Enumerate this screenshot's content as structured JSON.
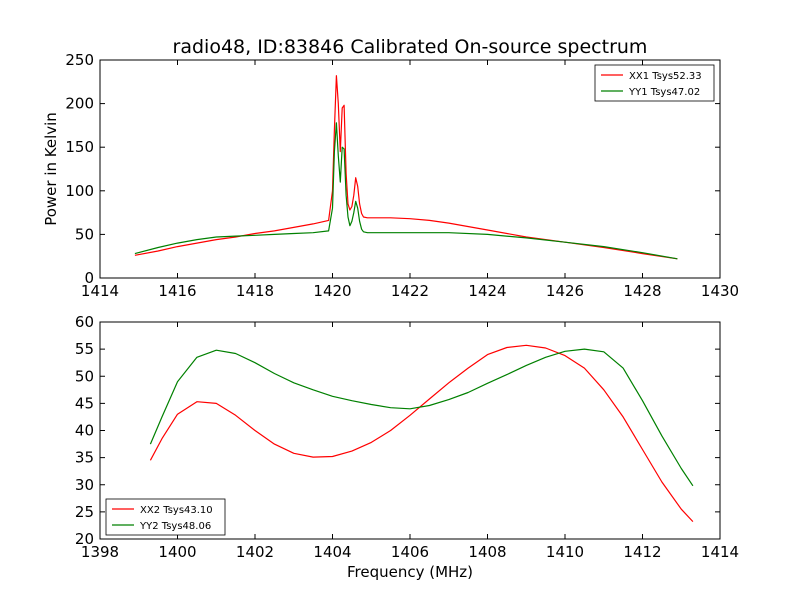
{
  "figure": {
    "title": "radio48, ID:83846 Calibrated On-source spectrum",
    "xlabel": "Frequency (MHz)"
  },
  "colors": {
    "red": "#ff0000",
    "green": "#008000",
    "axis": "#000000",
    "bg": "#ffffff"
  },
  "chart_data": [
    {
      "type": "line",
      "title": "radio48, ID:83846 Calibrated On-source spectrum",
      "xlabel": "",
      "ylabel": "Power in Kelvin",
      "xlim": [
        1414,
        1430
      ],
      "ylim": [
        0,
        250
      ],
      "xticks": [
        1414,
        1416,
        1418,
        1420,
        1422,
        1424,
        1426,
        1428,
        1430
      ],
      "yticks": [
        0,
        50,
        100,
        150,
        200,
        250
      ],
      "legend": "top-right",
      "series": [
        {
          "name": "XX1 Tsys52.33",
          "color": "#ff0000",
          "x": [
            1414.9,
            1415.5,
            1416,
            1416.5,
            1417,
            1417.5,
            1418,
            1418.5,
            1419,
            1419.5,
            1419.9,
            1420.0,
            1420.05,
            1420.1,
            1420.15,
            1420.2,
            1420.25,
            1420.3,
            1420.35,
            1420.4,
            1420.45,
            1420.5,
            1420.55,
            1420.6,
            1420.65,
            1420.7,
            1420.75,
            1420.8,
            1420.9,
            1421,
            1421.5,
            1422,
            1422.5,
            1423,
            1424,
            1425,
            1426,
            1427,
            1428,
            1428.9
          ],
          "y": [
            26,
            31,
            36,
            40,
            44,
            47,
            51,
            54,
            58,
            62,
            66,
            100,
            170,
            232,
            200,
            145,
            195,
            198,
            120,
            85,
            78,
            82,
            95,
            115,
            105,
            85,
            74,
            70,
            69,
            69,
            69,
            68,
            66,
            63,
            55,
            47,
            41,
            35,
            28,
            22
          ]
        },
        {
          "name": "YY1 Tsys47.02",
          "color": "#008000",
          "x": [
            1414.9,
            1415.5,
            1416,
            1416.5,
            1417,
            1417.5,
            1418,
            1418.5,
            1419,
            1419.5,
            1419.9,
            1420.0,
            1420.05,
            1420.1,
            1420.15,
            1420.2,
            1420.25,
            1420.3,
            1420.35,
            1420.4,
            1420.45,
            1420.5,
            1420.55,
            1420.6,
            1420.65,
            1420.7,
            1420.75,
            1420.8,
            1420.9,
            1421,
            1422,
            1423,
            1424,
            1425,
            1426,
            1427,
            1428,
            1428.9
          ],
          "y": [
            28,
            35,
            40,
            44,
            47,
            48,
            49,
            50,
            51,
            52,
            54,
            80,
            145,
            178,
            140,
            110,
            150,
            148,
            95,
            70,
            60,
            65,
            75,
            88,
            80,
            65,
            56,
            53,
            52,
            52,
            52,
            52,
            50,
            46,
            41,
            36,
            29,
            22
          ]
        }
      ]
    },
    {
      "type": "line",
      "title": "",
      "xlabel": "Frequency (MHz)",
      "ylabel": "",
      "xlim": [
        1398,
        1414
      ],
      "ylim": [
        20,
        60
      ],
      "xticks": [
        1398,
        1400,
        1402,
        1404,
        1406,
        1408,
        1410,
        1412,
        1414
      ],
      "yticks": [
        20,
        25,
        30,
        35,
        40,
        45,
        50,
        55,
        60
      ],
      "legend": "bottom-left",
      "series": [
        {
          "name": "XX2 Tsys43.10",
          "color": "#ff0000",
          "x": [
            1399.3,
            1399.6,
            1400,
            1400.5,
            1401,
            1401.5,
            1402,
            1402.5,
            1403,
            1403.5,
            1404,
            1404.5,
            1405,
            1405.5,
            1406,
            1406.5,
            1407,
            1407.5,
            1408,
            1408.5,
            1409,
            1409.5,
            1410,
            1410.5,
            1411,
            1411.5,
            1412,
            1412.5,
            1413,
            1413.3
          ],
          "y": [
            34.5,
            38.5,
            43,
            45.3,
            45,
            42.8,
            40,
            37.5,
            35.8,
            35.1,
            35.2,
            36.2,
            37.8,
            40,
            42.8,
            45.8,
            48.8,
            51.5,
            54,
            55.3,
            55.7,
            55.2,
            53.8,
            51.5,
            47.5,
            42.5,
            36.5,
            30.5,
            25.5,
            23.2
          ]
        },
        {
          "name": "YY2 Tsys48.06",
          "color": "#008000",
          "x": [
            1399.3,
            1399.6,
            1400,
            1400.5,
            1401,
            1401.5,
            1402,
            1402.5,
            1403,
            1403.5,
            1404,
            1404.5,
            1405,
            1405.5,
            1406,
            1406.5,
            1407,
            1407.5,
            1408,
            1408.5,
            1409,
            1409.5,
            1410,
            1410.5,
            1411,
            1411.5,
            1412,
            1412.5,
            1413,
            1413.3
          ],
          "y": [
            37.5,
            42.5,
            49,
            53.5,
            54.8,
            54.2,
            52.5,
            50.5,
            48.8,
            47.5,
            46.3,
            45.5,
            44.8,
            44.2,
            44,
            44.6,
            45.7,
            47,
            48.7,
            50.3,
            52,
            53.5,
            54.6,
            55,
            54.5,
            51.5,
            45.5,
            39,
            33,
            29.8
          ]
        }
      ]
    }
  ]
}
